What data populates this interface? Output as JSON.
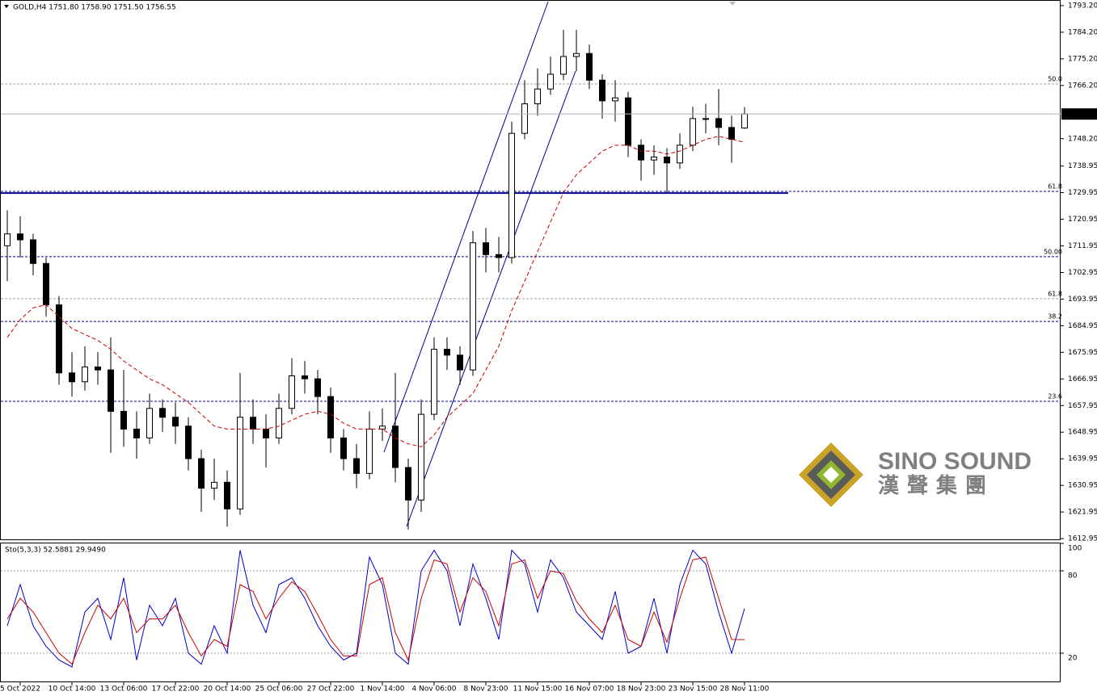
{
  "chart_data": [
    {
      "type": "candlestick",
      "title": "GOLD,H4  1751.80 1758.90 1751.50 1756.55",
      "categories": [
        null,
        "5 Oct 2022",
        null,
        null,
        null,
        "10 Oct 14:00",
        null,
        null,
        null,
        "13 Oct 06:00",
        null,
        null,
        null,
        "17 Oct 22:00",
        null,
        null,
        null,
        "20 Oct 14:00",
        null,
        null,
        null,
        "25 Oct 06:00",
        null,
        null,
        null,
        "27 Oct 22:00",
        null,
        null,
        null,
        "1 Nov 14:00",
        null,
        null,
        null,
        "4 Nov 06:00",
        null,
        null,
        null,
        "8 Nov 23:00",
        null,
        null,
        null,
        "11 Nov 15:00",
        null,
        null,
        null,
        "16 Nov 07:00",
        null,
        null,
        null,
        "18 Nov 23:00",
        null,
        null,
        null,
        "23 Nov 15:00",
        null,
        null,
        null,
        "28 Nov 11:00"
      ],
      "open": [
        1712,
        1716,
        1714,
        1706,
        1692,
        1669,
        1666,
        1671,
        1670,
        1656,
        1650,
        1647,
        1657,
        1654,
        1651,
        1640,
        1630,
        1632,
        1623,
        1654,
        1650,
        1647,
        1657,
        1668,
        1667,
        1661,
        1647,
        1640,
        1635,
        1650,
        1651,
        1637,
        1626,
        1655,
        1677,
        1675,
        1670,
        1713,
        1709,
        1708,
        1750,
        1760,
        1765,
        1770,
        1776,
        1777,
        1768,
        1761,
        1762,
        1746,
        1741,
        1742,
        1740,
        1746,
        1755,
        1755,
        1752,
        1751.8
      ],
      "high": [
        1724,
        1722,
        1716,
        1708,
        1695,
        1676,
        1678,
        1676,
        1681,
        1670,
        1656,
        1662,
        1660,
        1659,
        1654,
        1643,
        1640,
        1636,
        1669,
        1660,
        1655,
        1662,
        1674,
        1673,
        1670,
        1664,
        1650,
        1645,
        1656,
        1657,
        1669,
        1640,
        1660,
        1681,
        1681,
        1678,
        1717,
        1718,
        1715,
        1754,
        1768,
        1772,
        1776,
        1785,
        1785,
        1780,
        1770,
        1768,
        1764,
        1748,
        1746,
        1745,
        1750,
        1759,
        1760,
        1765,
        1756,
        1758.9
      ],
      "low": [
        1700,
        1708,
        1702,
        1688,
        1665,
        1661,
        1663,
        1665,
        1642,
        1644,
        1640,
        1645,
        1649,
        1645,
        1636,
        1622,
        1626,
        1617,
        1621,
        1645,
        1637,
        1645,
        1655,
        1662,
        1655,
        1642,
        1636,
        1630,
        1633,
        1646,
        1632,
        1616,
        1622,
        1653,
        1670,
        1665,
        1668,
        1703,
        1703,
        1706,
        1748,
        1756,
        1763,
        1768,
        1771,
        1765,
        1755,
        1754,
        1742,
        1734,
        1736,
        1730,
        1738,
        1744,
        1750,
        1746,
        1740,
        1751.5
      ],
      "close": [
        1716,
        1714,
        1706,
        1692,
        1669,
        1666,
        1671,
        1670,
        1656,
        1650,
        1647,
        1657,
        1654,
        1651,
        1640,
        1630,
        1632,
        1623,
        1654,
        1650,
        1647,
        1657,
        1668,
        1667,
        1661,
        1647,
        1640,
        1635,
        1650,
        1651,
        1637,
        1626,
        1655,
        1677,
        1675,
        1670,
        1713,
        1709,
        1708,
        1750,
        1760,
        1765,
        1770,
        1776,
        1777,
        1768,
        1761,
        1762,
        1746,
        1741,
        1742,
        1740,
        1746,
        1755,
        1755,
        1752,
        1748,
        1756.55
      ],
      "ma": {
        "color": "#cc0000",
        "values": [
          1681,
          1687,
          1691,
          1692,
          1688,
          1684,
          1682,
          1680,
          1677,
          1673,
          1670,
          1667,
          1665,
          1662,
          1659,
          1655,
          1651,
          1650,
          1650,
          1650,
          1650,
          1651,
          1653,
          1655,
          1656,
          1655,
          1652,
          1650,
          1650,
          1650,
          1647,
          1645,
          1644,
          1648,
          1654,
          1658,
          1662,
          1670,
          1678,
          1690,
          1700,
          1710,
          1720,
          1730,
          1736,
          1740,
          1744,
          1746,
          1746,
          1744,
          1744,
          1743,
          1744,
          1746,
          1748,
          1749,
          1748,
          1747
        ]
      },
      "ylim": [
        1612.7,
        1795.1
      ],
      "yticks": [
        {
          "value": 1793.2,
          "label": "1793.20"
        },
        {
          "value": 1784.2,
          "label": "1784.20"
        },
        {
          "value": 1775.2,
          "label": "1775.20"
        },
        {
          "value": 1766.2,
          "label": "1766.20"
        },
        {
          "value": 1748.2,
          "label": "1748.20"
        },
        1738.95,
        1729.95,
        1720.95,
        1711.95,
        1702.95,
        1693.95,
        1684.95,
        1675.95,
        1666.95,
        1657.95,
        1648.95,
        1639.95,
        1630.95,
        1621.95,
        1612.95
      ],
      "levels": [
        {
          "price": 1766.7,
          "label": "50.0",
          "color": "#a0a0a0"
        },
        {
          "price": 1730.4,
          "label": "61.8",
          "color": "#00008b"
        },
        {
          "price": 1708.3,
          "label": "50.00",
          "color": "#00008b"
        },
        {
          "price": 1694.1,
          "label": "61.8",
          "color": "#a0a0a0"
        },
        {
          "price": 1686.4,
          "label": "38.2",
          "color": "#00008b"
        },
        {
          "price": 1659.4,
          "label": "23.6",
          "color": "#00008b"
        }
      ],
      "hline": {
        "price": 1729.8,
        "color": "#00008b"
      },
      "logo": {
        "name": "SINO SOUND",
        "subtitle": "漢聲集團"
      }
    },
    {
      "type": "line",
      "title": "Sto(5,3,3) 52.5881 29.9490",
      "ylim": [
        0,
        100
      ],
      "yticks": [
        100,
        80,
        20
      ],
      "series": [
        {
          "color": "#0000cc",
          "values": [
            40,
            70,
            40,
            25,
            15,
            10,
            50,
            60,
            30,
            75,
            15,
            55,
            40,
            60,
            20,
            12,
            40,
            20,
            95,
            55,
            35,
            70,
            75,
            60,
            40,
            25,
            15,
            20,
            90,
            70,
            20,
            12,
            80,
            95,
            80,
            40,
            85,
            60,
            30,
            95,
            85,
            50,
            88,
            75,
            50,
            40,
            30,
            65,
            20,
            25,
            60,
            20,
            70,
            95,
            85,
            50,
            20,
            52.5881
          ]
        },
        {
          "color": "#cc0000",
          "values": [
            45,
            60,
            50,
            35,
            20,
            12,
            35,
            55,
            45,
            60,
            35,
            45,
            45,
            55,
            35,
            18,
            30,
            25,
            70,
            65,
            45,
            60,
            72,
            65,
            48,
            30,
            18,
            18,
            70,
            75,
            35,
            15,
            60,
            88,
            85,
            50,
            75,
            65,
            40,
            85,
            88,
            60,
            80,
            78,
            58,
            45,
            35,
            55,
            30,
            25,
            50,
            28,
            60,
            88,
            90,
            60,
            30,
            29.949
          ]
        }
      ]
    }
  ]
}
